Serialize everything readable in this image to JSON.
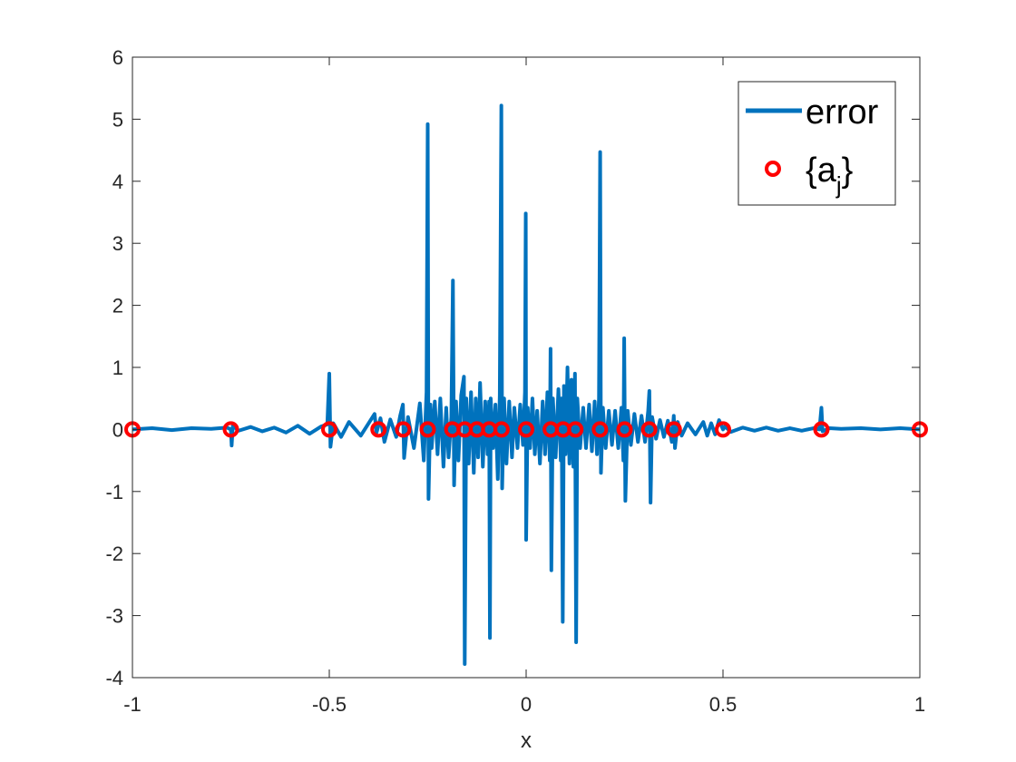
{
  "chart_data": {
    "type": "line",
    "title": "",
    "xlabel": "x",
    "ylabel": "",
    "xlim": [
      -1,
      1
    ],
    "ylim": [
      -4,
      6
    ],
    "xticks": [
      "-1",
      "-0.5",
      "0",
      "0.5",
      "1"
    ],
    "yticks": [
      "-4",
      "-3",
      "-2",
      "-1",
      "0",
      "1",
      "2",
      "3",
      "4",
      "5",
      "6"
    ],
    "grid": false,
    "legend": {
      "placement": "top-right",
      "line_label": "error",
      "marker_label_base": "{a",
      "marker_label_sub": "j",
      "marker_label_end": "}"
    },
    "colors": {
      "error": "#0072bd",
      "markers": "#ff0000"
    },
    "series": [
      {
        "name": "error",
        "style": "line",
        "points": [
          [
            -1.0,
            0.0
          ],
          [
            -0.95,
            0.02
          ],
          [
            -0.9,
            -0.01
          ],
          [
            -0.85,
            0.02
          ],
          [
            -0.8,
            0.01
          ],
          [
            -0.76,
            0.03
          ],
          [
            -0.75,
            0.0
          ],
          [
            -0.748,
            -0.26
          ],
          [
            -0.745,
            0.06
          ],
          [
            -0.73,
            -0.02
          ],
          [
            -0.7,
            0.04
          ],
          [
            -0.67,
            -0.03
          ],
          [
            -0.64,
            0.03
          ],
          [
            -0.61,
            -0.05
          ],
          [
            -0.58,
            0.06
          ],
          [
            -0.55,
            -0.07
          ],
          [
            -0.52,
            0.05
          ],
          [
            -0.505,
            0.08
          ],
          [
            -0.5,
            0.9
          ],
          [
            -0.497,
            -0.28
          ],
          [
            -0.49,
            0.1
          ],
          [
            -0.47,
            -0.12
          ],
          [
            -0.45,
            0.12
          ],
          [
            -0.42,
            -0.1
          ],
          [
            -0.4,
            0.1
          ],
          [
            -0.385,
            0.25
          ],
          [
            -0.38,
            -0.05
          ],
          [
            -0.37,
            0.18
          ],
          [
            -0.36,
            -0.2
          ],
          [
            -0.345,
            0.16
          ],
          [
            -0.33,
            -0.12
          ],
          [
            -0.32,
            0.22
          ],
          [
            -0.313,
            0.4
          ],
          [
            -0.31,
            -0.46
          ],
          [
            -0.3,
            0.2
          ],
          [
            -0.285,
            -0.3
          ],
          [
            -0.27,
            0.42
          ],
          [
            -0.26,
            -0.5
          ],
          [
            -0.253,
            0.6
          ],
          [
            -0.25,
            4.92
          ],
          [
            -0.248,
            -1.12
          ],
          [
            -0.243,
            0.4
          ],
          [
            -0.24,
            -0.3
          ],
          [
            -0.232,
            0.45
          ],
          [
            -0.225,
            -0.4
          ],
          [
            -0.218,
            0.5
          ],
          [
            -0.21,
            -0.6
          ],
          [
            -0.203,
            0.35
          ],
          [
            -0.197,
            -0.45
          ],
          [
            -0.19,
            0.2
          ],
          [
            -0.186,
            2.4
          ],
          [
            -0.183,
            -0.9
          ],
          [
            -0.178,
            0.45
          ],
          [
            -0.172,
            -0.5
          ],
          [
            -0.165,
            0.55
          ],
          [
            -0.158,
            0.85
          ],
          [
            -0.156,
            -3.78
          ],
          [
            -0.152,
            0.5
          ],
          [
            -0.146,
            -0.55
          ],
          [
            -0.14,
            0.6
          ],
          [
            -0.133,
            -0.7
          ],
          [
            -0.128,
            0.5
          ],
          [
            -0.122,
            -0.45
          ],
          [
            -0.117,
            0.75
          ],
          [
            -0.11,
            -0.6
          ],
          [
            -0.104,
            0.45
          ],
          [
            -0.098,
            -0.4
          ],
          [
            -0.094,
            0.45
          ],
          [
            -0.092,
            -3.36
          ],
          [
            -0.09,
            0.5
          ],
          [
            -0.084,
            -0.3
          ],
          [
            -0.078,
            0.4
          ],
          [
            -0.072,
            -0.8
          ],
          [
            -0.067,
            0.55
          ],
          [
            -0.063,
            5.22
          ],
          [
            -0.061,
            -0.95
          ],
          [
            -0.056,
            0.5
          ],
          [
            -0.05,
            -0.55
          ],
          [
            -0.043,
            0.45
          ],
          [
            -0.036,
            -0.45
          ],
          [
            -0.03,
            0.35
          ],
          [
            -0.022,
            -0.3
          ],
          [
            -0.015,
            0.4
          ],
          [
            -0.008,
            -0.25
          ],
          [
            -0.003,
            0.6
          ],
          [
            -0.001,
            3.48
          ],
          [
            0.0,
            -1.78
          ],
          [
            0.004,
            0.35
          ],
          [
            0.01,
            -0.3
          ],
          [
            0.016,
            0.5
          ],
          [
            0.022,
            -0.4
          ],
          [
            0.028,
            0.3
          ],
          [
            0.035,
            -0.55
          ],
          [
            0.042,
            0.45
          ],
          [
            0.048,
            -0.4
          ],
          [
            0.054,
            0.6
          ],
          [
            0.06,
            -0.5
          ],
          [
            0.062,
            1.3
          ],
          [
            0.064,
            -2.27
          ],
          [
            0.068,
            0.5
          ],
          [
            0.075,
            -0.45
          ],
          [
            0.082,
            0.65
          ],
          [
            0.088,
            -0.5
          ],
          [
            0.09,
            0.5
          ],
          [
            0.093,
            -3.1
          ],
          [
            0.096,
            0.7
          ],
          [
            0.1,
            -0.4
          ],
          [
            0.105,
            1.0
          ],
          [
            0.11,
            -0.55
          ],
          [
            0.115,
            0.8
          ],
          [
            0.12,
            -0.6
          ],
          [
            0.124,
            0.9
          ],
          [
            0.127,
            -3.43
          ],
          [
            0.13,
            0.5
          ],
          [
            0.137,
            -0.3
          ],
          [
            0.145,
            0.35
          ],
          [
            0.152,
            -0.3
          ],
          [
            0.16,
            0.4
          ],
          [
            0.167,
            -0.35
          ],
          [
            0.174,
            0.45
          ],
          [
            0.18,
            -0.4
          ],
          [
            0.185,
            0.5
          ],
          [
            0.188,
            4.47
          ],
          [
            0.19,
            -0.7
          ],
          [
            0.195,
            0.35
          ],
          [
            0.202,
            -0.3
          ],
          [
            0.21,
            0.3
          ],
          [
            0.218,
            -0.25
          ],
          [
            0.226,
            0.3
          ],
          [
            0.234,
            -0.3
          ],
          [
            0.242,
            0.35
          ],
          [
            0.247,
            -0.5
          ],
          [
            0.249,
            1.47
          ],
          [
            0.252,
            -1.15
          ],
          [
            0.258,
            0.3
          ],
          [
            0.266,
            -0.25
          ],
          [
            0.275,
            0.25
          ],
          [
            0.284,
            -0.2
          ],
          [
            0.293,
            0.22
          ],
          [
            0.302,
            -0.2
          ],
          [
            0.31,
            0.3
          ],
          [
            0.313,
            0.62
          ],
          [
            0.316,
            -1.18
          ],
          [
            0.32,
            0.2
          ],
          [
            0.33,
            -0.15
          ],
          [
            0.34,
            0.15
          ],
          [
            0.35,
            -0.12
          ],
          [
            0.36,
            0.14
          ],
          [
            0.37,
            -0.2
          ],
          [
            0.375,
            0.22
          ],
          [
            0.378,
            -0.3
          ],
          [
            0.385,
            0.12
          ],
          [
            0.395,
            -0.1
          ],
          [
            0.41,
            0.1
          ],
          [
            0.43,
            -0.08
          ],
          [
            0.45,
            0.12
          ],
          [
            0.46,
            -0.1
          ],
          [
            0.47,
            0.1
          ],
          [
            0.48,
            -0.08
          ],
          [
            0.49,
            0.15
          ],
          [
            0.5,
            0.0
          ],
          [
            0.505,
            0.05
          ],
          [
            0.52,
            -0.04
          ],
          [
            0.55,
            0.03
          ],
          [
            0.58,
            -0.02
          ],
          [
            0.61,
            0.03
          ],
          [
            0.64,
            -0.02
          ],
          [
            0.67,
            0.02
          ],
          [
            0.7,
            -0.02
          ],
          [
            0.73,
            0.02
          ],
          [
            0.745,
            0.0
          ],
          [
            0.75,
            0.35
          ],
          [
            0.753,
            -0.03
          ],
          [
            0.77,
            0.02
          ],
          [
            0.8,
            0.01
          ],
          [
            0.85,
            0.02
          ],
          [
            0.9,
            0.0
          ],
          [
            0.95,
            0.02
          ],
          [
            1.0,
            0.0
          ]
        ]
      },
      {
        "name": "{a_j}",
        "style": "markers",
        "x": [
          -1,
          -0.75,
          -0.5,
          -0.375,
          -0.3125,
          -0.25,
          -0.1875,
          -0.15625,
          -0.125,
          -0.09375,
          -0.0625,
          0,
          0.0625,
          0.09375,
          0.125,
          0.1875,
          0.25,
          0.3125,
          0.375,
          0.5,
          0.75,
          1
        ],
        "y": [
          0,
          0,
          0,
          0,
          0,
          0,
          0,
          0,
          0,
          0,
          0,
          0,
          0,
          0,
          0,
          0,
          0,
          0,
          0,
          0,
          0,
          0
        ]
      }
    ]
  }
}
